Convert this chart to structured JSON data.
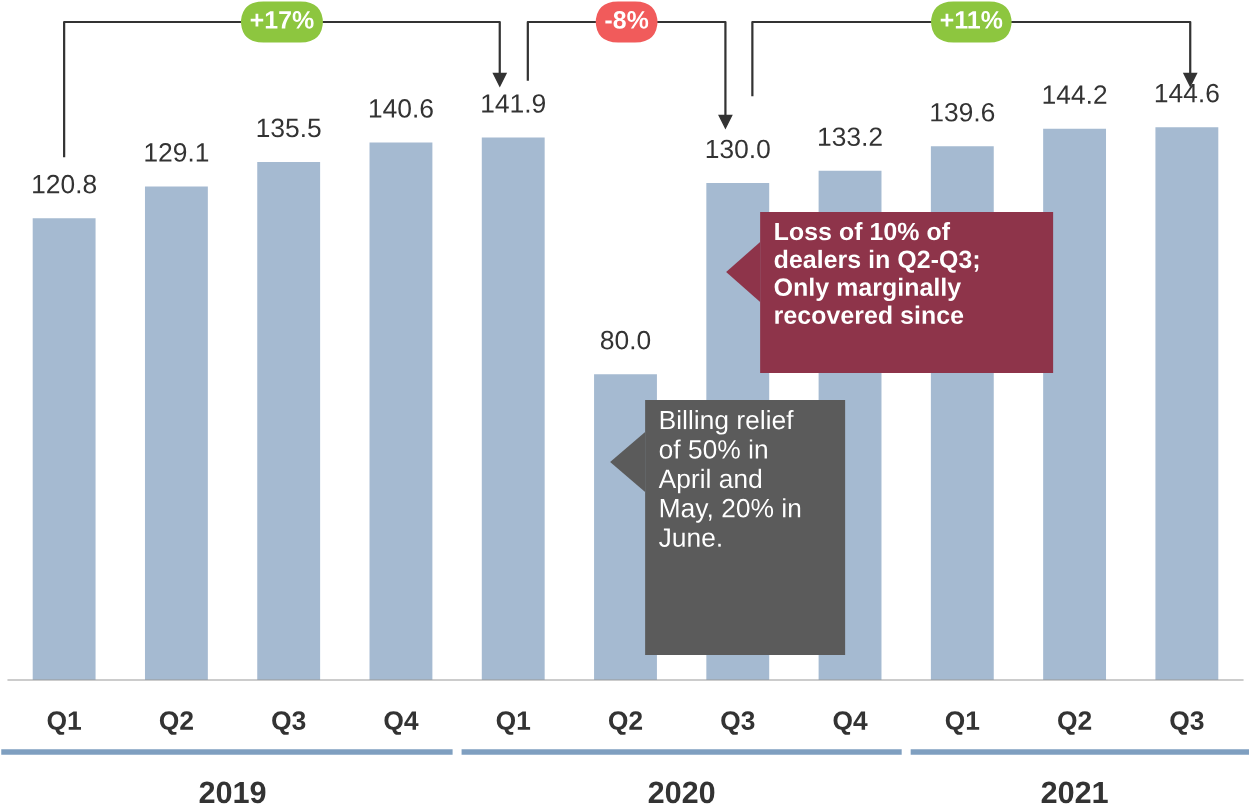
{
  "chart_data": {
    "type": "bar",
    "categories": [
      "Q1",
      "Q2",
      "Q3",
      "Q4",
      "Q1",
      "Q2",
      "Q3",
      "Q4",
      "Q1",
      "Q2",
      "Q3"
    ],
    "values": [
      120.8,
      129.1,
      135.5,
      140.6,
      141.9,
      80.0,
      130.0,
      133.2,
      139.6,
      144.2,
      144.6
    ],
    "color": "#a5bad1",
    "value_labels": [
      "120.8",
      "129.1",
      "135.5",
      "140.6",
      "141.9",
      "80.0",
      "130.0",
      "133.2",
      "139.6",
      "144.2",
      "144.6"
    ],
    "annotations": [
      "+17%",
      "-8%",
      "+11%",
      "Loss of 10% of dealers in Q2-Q3; Only marginally recovered since",
      "Billing relief of 50% in April and May, 20% in June.",
      "2019",
      "2020",
      "2021"
    ],
    "grid": false,
    "legend": false
  }
}
